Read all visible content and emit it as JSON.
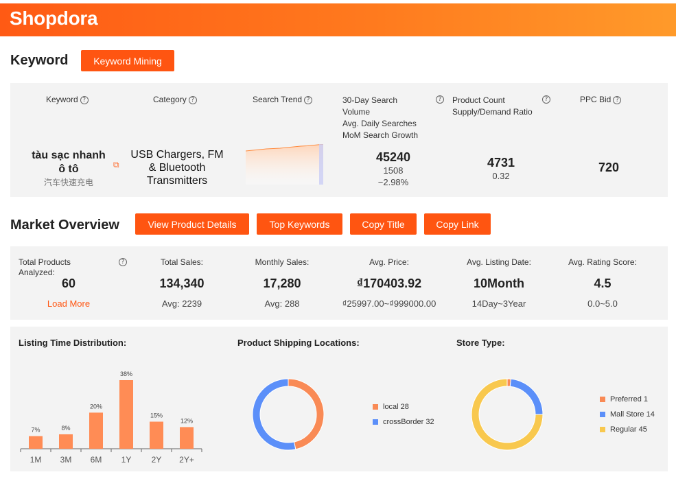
{
  "brand": {
    "logo": "Shopdora"
  },
  "keyword_section": {
    "title": "Keyword",
    "mining_button": "Keyword Mining",
    "headers": {
      "keyword": "Keyword",
      "category": "Category",
      "search_trend": "Search Trend",
      "search_volume_lines": [
        "30-Day Search",
        "Volume",
        "Avg. Daily Searches",
        "MoM Search Growth"
      ],
      "product_count_lines": [
        "Product Count",
        "Supply/Demand Ratio"
      ],
      "ppc_bid": "PPC Bid"
    },
    "row": {
      "keyword_lines": [
        "tàu sạc nhanh",
        "ô tô"
      ],
      "keyword_translation": "汽车快速充电",
      "category_lines": [
        "USB Chargers, FM",
        "& Bluetooth",
        "Transmitters"
      ],
      "search_volume": "45240",
      "avg_daily": "1508",
      "mom_growth": "−2.98%",
      "product_count": "4731",
      "supply_demand": "0.32",
      "ppc_bid": "720"
    }
  },
  "market_overview": {
    "title": "Market Overview",
    "buttons": [
      "View Product Details",
      "Top Keywords",
      "Copy Title",
      "Copy Link"
    ],
    "stats": [
      {
        "label_lines": [
          "Total Products",
          "Analyzed:"
        ],
        "value": "60",
        "sub": "Load More"
      },
      {
        "label": "Total Sales:",
        "value": "134,340",
        "sub": "Avg: 2239"
      },
      {
        "label": "Monthly Sales:",
        "value": "17,280",
        "sub": "Avg: 288"
      },
      {
        "label": "Avg. Price:",
        "value": "₫170403.92",
        "sub": "₫25997.00~₫999000.00"
      },
      {
        "label": "Avg. Listing Date:",
        "value": "10Month",
        "sub": "14Day~3Year"
      },
      {
        "label": "Avg. Rating Score:",
        "value": "4.5",
        "sub": "0.0~5.0"
      }
    ]
  },
  "charts": {
    "listing_title": "Listing Time Distribution:",
    "shipping_title": "Product Shipping Locations:",
    "store_title": "Store Type:"
  },
  "colors": {
    "accent": "#ff5511",
    "bar": "#ff8c55",
    "blue": "#5b8ff9",
    "yellow": "#f8c84e",
    "orange": "#f98a55"
  },
  "chart_data": [
    {
      "type": "bar",
      "title": "Listing Time Distribution:",
      "categories": [
        "1M",
        "3M",
        "6M",
        "1Y",
        "2Y",
        "2Y+"
      ],
      "values": [
        7,
        8,
        20,
        38,
        15,
        12
      ],
      "data_labels": [
        "7%",
        "8%",
        "20%",
        "38%",
        "15%",
        "12%"
      ],
      "grid": false
    },
    {
      "type": "pie",
      "title": "Product Shipping Locations:",
      "legend": "right",
      "slices": [
        {
          "name": "local",
          "value": 28,
          "label": "local 28",
          "color": "#f98a55"
        },
        {
          "name": "crossBorder",
          "value": 32,
          "label": "crossBorder 32",
          "color": "#5b8ff9"
        }
      ]
    },
    {
      "type": "pie",
      "title": "Store Type:",
      "legend": "right",
      "slices": [
        {
          "name": "Preferred",
          "value": 1,
          "label": "Preferred 1",
          "color": "#f98a55"
        },
        {
          "name": "Mall Store",
          "value": 14,
          "label": "Mall Store 14",
          "color": "#5b8ff9"
        },
        {
          "name": "Regular",
          "value": 45,
          "label": "Regular 45",
          "color": "#f8c84e"
        }
      ]
    }
  ]
}
